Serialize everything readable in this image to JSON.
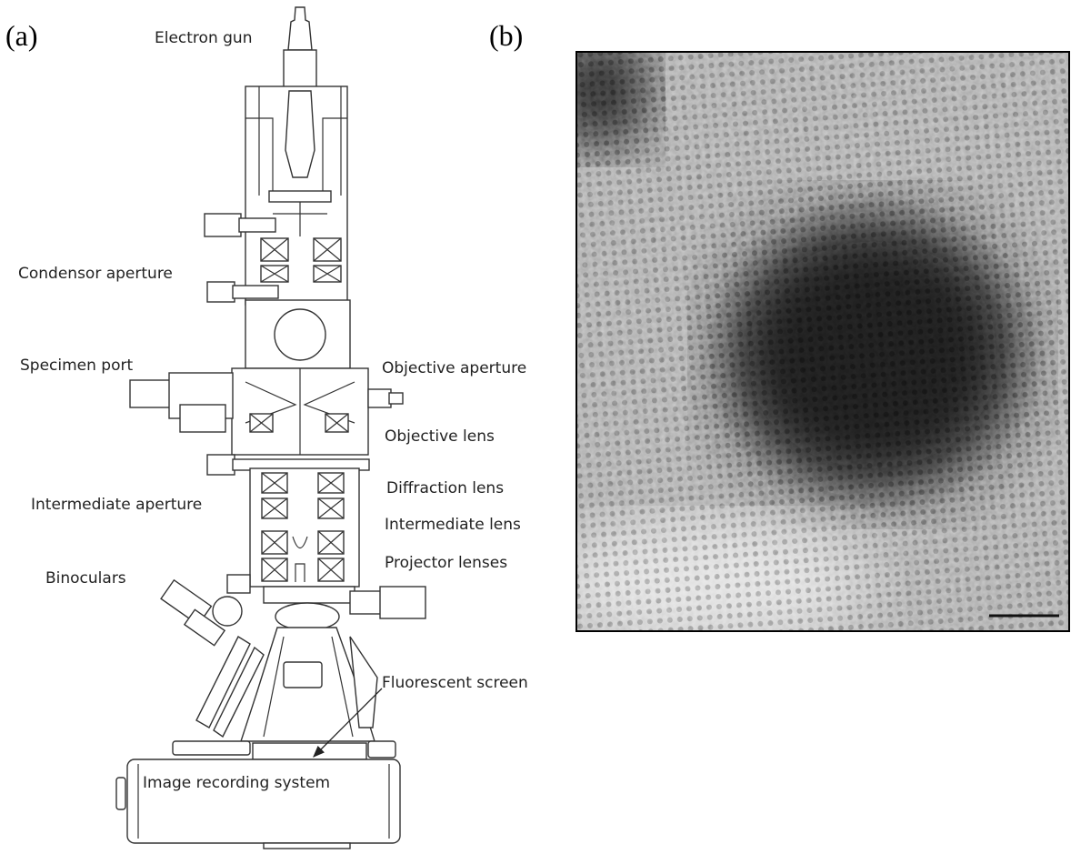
{
  "panels": [
    {
      "label": "(a)",
      "annotations": [
        "Electron gun",
        "Condensor aperture",
        "Specimen port",
        "Objective aperture",
        "Objective lens",
        "Diffraction lens",
        "Intermediate aperture",
        "Intermediate lens",
        "Projector lenses",
        "Binoculars",
        "Fluorescent screen",
        "Image recording system"
      ]
    },
    {
      "label": "(b)"
    }
  ]
}
